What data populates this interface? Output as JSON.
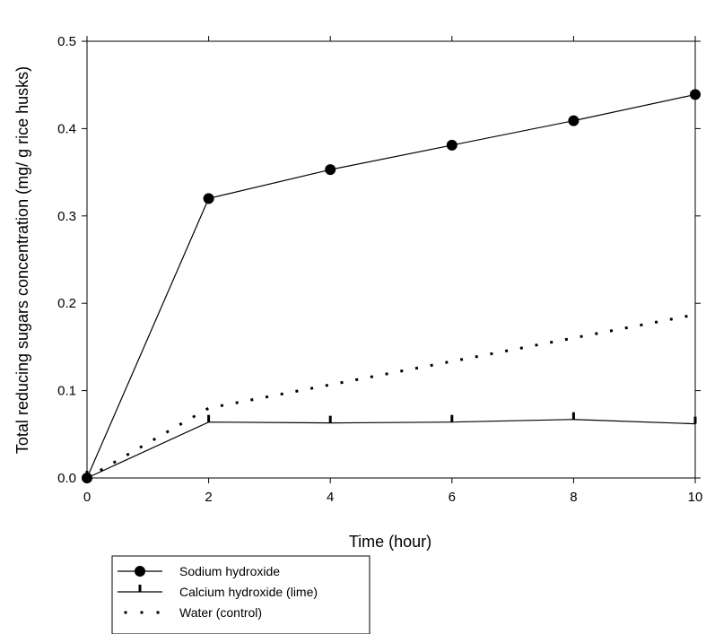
{
  "chart_data": {
    "type": "line",
    "xlabel": "Time (hour)",
    "ylabel": "Total reducing sugars concentration (mg/ g rice husks)",
    "xlim": [
      0,
      10
    ],
    "ylim": [
      0,
      0.5
    ],
    "x_ticks": [
      "0",
      "2",
      "4",
      "6",
      "8",
      "10"
    ],
    "y_ticks": [
      "0.0",
      "0.1",
      "0.2",
      "0.3",
      "0.4",
      "0.5"
    ],
    "grid": false,
    "legend_position": "bottom-left",
    "series": [
      {
        "name": "Sodium hydroxide",
        "marker": "filled-circle",
        "line": "solid",
        "color": "#000000",
        "x": [
          0,
          2,
          4,
          6,
          8,
          10
        ],
        "y": [
          0.0,
          0.32,
          0.353,
          0.381,
          0.409,
          0.439
        ]
      },
      {
        "name": "Calcium hydroxide (lime)",
        "marker": "tick",
        "line": "solid",
        "color": "#000000",
        "x": [
          0,
          2,
          4,
          6,
          8,
          10
        ],
        "y": [
          0.0,
          0.064,
          0.063,
          0.064,
          0.067,
          0.062
        ]
      },
      {
        "name": "Water (control)",
        "marker": "none",
        "line": "dotted",
        "color": "#000000",
        "x": [
          0,
          2,
          10
        ],
        "y": [
          0.0,
          0.08,
          0.187
        ]
      }
    ]
  }
}
